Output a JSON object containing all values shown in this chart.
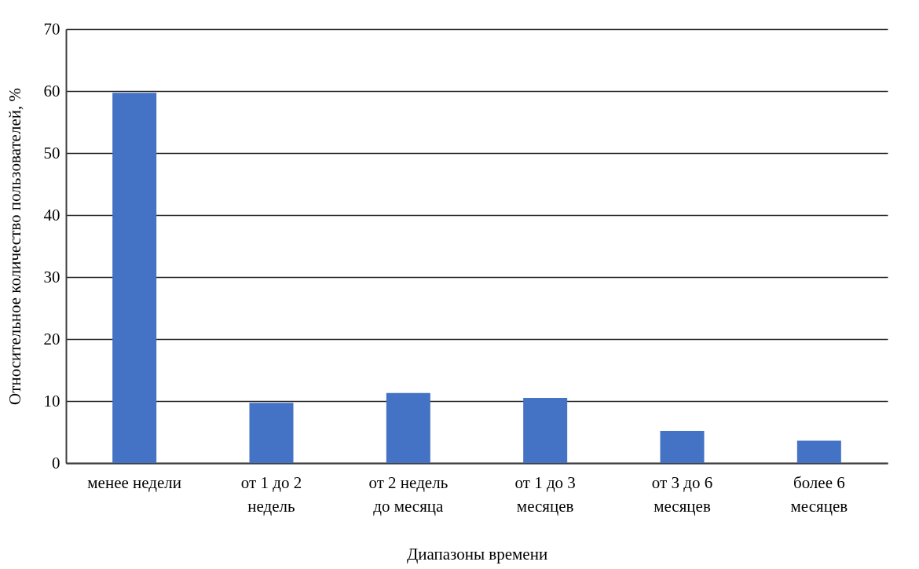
{
  "chart_data": {
    "type": "bar",
    "xlabel": "Диапазоны времени",
    "ylabel": "Относительное количество пользователей, %",
    "categories": [
      "менее недели",
      "от 1  до 2\nнедель",
      "от 2 недель\nдо месяца",
      "от 1 до 3\nмесяцев",
      "от 3 до 6\nмесяцев",
      "более 6\nмесяцев"
    ],
    "values": [
      59.7,
      9.7,
      11.3,
      10.5,
      5.2,
      3.6
    ],
    "color": "#4472c4",
    "ylim": [
      0,
      70
    ],
    "yticks": [
      0,
      10,
      20,
      30,
      40,
      50,
      60,
      70
    ],
    "grid": "y"
  }
}
